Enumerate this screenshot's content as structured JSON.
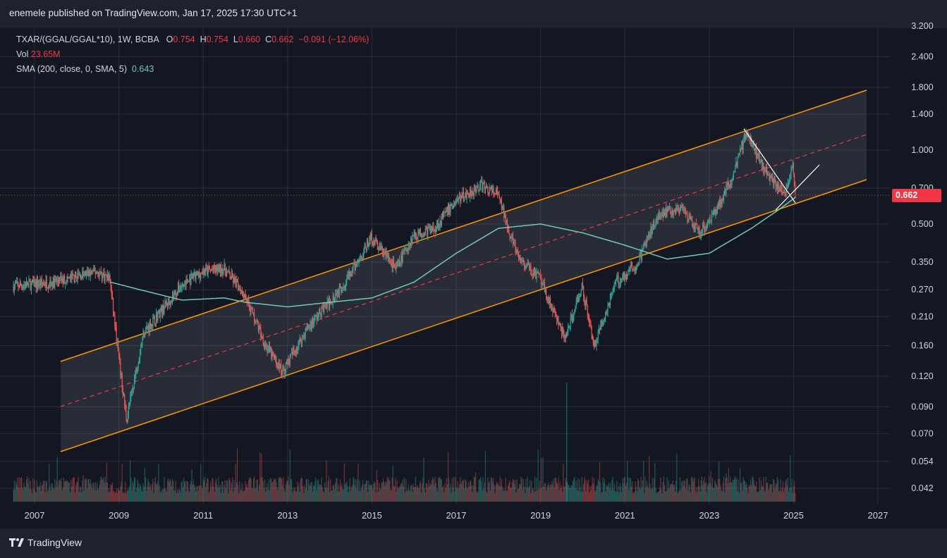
{
  "header": {
    "publish_text": "enemele published on TradingView.com, Jan 17, 2025 17:30 UTC+1"
  },
  "legend": {
    "symbol": "TXAR/(GGAL/GGAL*10), 1W, BCBA",
    "o_label": "O",
    "o_value": "0.754",
    "h_label": "H",
    "h_value": "0.754",
    "l_label": "L",
    "l_value": "0.660",
    "c_label": "C",
    "c_value": "0.662",
    "change": "−0.091 (−12.06%)",
    "vol_label": "Vol",
    "vol_value": "23.65M",
    "sma_label": "SMA (200, close, 0, SMA, 5)",
    "sma_value": "0.643"
  },
  "footer": {
    "brand": "TradingView"
  },
  "colors": {
    "background": "#131722",
    "up": "#26a69a",
    "down": "#ef5350",
    "sma": "#73c8b5",
    "channel": "#ff9800",
    "price_tag": "#f23645"
  },
  "chart_data": {
    "type": "candlestick",
    "x_tick_labels": [
      "2007",
      "2009",
      "2011",
      "2013",
      "2015",
      "2017",
      "2019",
      "2021",
      "2023",
      "2025",
      "2027"
    ],
    "y_tick_labels": [
      "3.200",
      "2.400",
      "1.800",
      "1.400",
      "1.000",
      "0.700",
      "0.500",
      "0.350",
      "0.270",
      "0.210",
      "0.160",
      "0.120",
      "0.090",
      "0.070",
      "0.054",
      "0.042"
    ],
    "y_scale": "log",
    "last_price_label": "0.662",
    "approx_close_path": [
      {
        "date": "2006.5",
        "value": 0.28
      },
      {
        "date": "2007.5",
        "value": 0.29
      },
      {
        "date": "2008.5",
        "value": 0.32
      },
      {
        "date": "2008.8",
        "value": 0.3
      },
      {
        "date": "2009.0",
        "value": 0.15
      },
      {
        "date": "2009.2",
        "value": 0.08
      },
      {
        "date": "2009.6",
        "value": 0.18
      },
      {
        "date": "2010.0",
        "value": 0.22
      },
      {
        "date": "2010.5",
        "value": 0.28
      },
      {
        "date": "2011.0",
        "value": 0.32
      },
      {
        "date": "2011.5",
        "value": 0.33
      },
      {
        "date": "2012.0",
        "value": 0.26
      },
      {
        "date": "2012.5",
        "value": 0.16
      },
      {
        "date": "2012.9",
        "value": 0.125
      },
      {
        "date": "2013.5",
        "value": 0.19
      },
      {
        "date": "2014.0",
        "value": 0.24
      },
      {
        "date": "2014.5",
        "value": 0.31
      },
      {
        "date": "2015.0",
        "value": 0.44
      },
      {
        "date": "2015.6",
        "value": 0.33
      },
      {
        "date": "2016.0",
        "value": 0.45
      },
      {
        "date": "2016.5",
        "value": 0.48
      },
      {
        "date": "2017.0",
        "value": 0.62
      },
      {
        "date": "2017.6",
        "value": 0.72
      },
      {
        "date": "2018.0",
        "value": 0.66
      },
      {
        "date": "2018.5",
        "value": 0.36
      },
      {
        "date": "2019.0",
        "value": 0.3
      },
      {
        "date": "2019.6",
        "value": 0.17
      },
      {
        "date": "2020.0",
        "value": 0.28
      },
      {
        "date": "2020.3",
        "value": 0.16
      },
      {
        "date": "2020.8",
        "value": 0.29
      },
      {
        "date": "2021.3",
        "value": 0.34
      },
      {
        "date": "2021.8",
        "value": 0.55
      },
      {
        "date": "2022.3",
        "value": 0.58
      },
      {
        "date": "2022.8",
        "value": 0.46
      },
      {
        "date": "2023.2",
        "value": 0.58
      },
      {
        "date": "2023.6",
        "value": 0.8
      },
      {
        "date": "2023.9",
        "value": 1.2
      },
      {
        "date": "2024.3",
        "value": 0.85
      },
      {
        "date": "2024.8",
        "value": 0.66
      },
      {
        "date": "2025.0",
        "value": 0.88
      },
      {
        "date": "2025.05",
        "value": 0.662
      }
    ],
    "approx_sma_path": [
      {
        "date": "2008.8",
        "value": 0.29
      },
      {
        "date": "2009.5",
        "value": 0.27
      },
      {
        "date": "2010.5",
        "value": 0.245
      },
      {
        "date": "2011.5",
        "value": 0.25
      },
      {
        "date": "2012.0",
        "value": 0.24
      },
      {
        "date": "2013.0",
        "value": 0.23
      },
      {
        "date": "2014.0",
        "value": 0.24
      },
      {
        "date": "2015.0",
        "value": 0.25
      },
      {
        "date": "2016.0",
        "value": 0.29
      },
      {
        "date": "2017.0",
        "value": 0.38
      },
      {
        "date": "2018.0",
        "value": 0.48
      },
      {
        "date": "2019.0",
        "value": 0.5
      },
      {
        "date": "2020.0",
        "value": 0.46
      },
      {
        "date": "2021.0",
        "value": 0.41
      },
      {
        "date": "2022.0",
        "value": 0.36
      },
      {
        "date": "2023.0",
        "value": 0.38
      },
      {
        "date": "2024.0",
        "value": 0.48
      },
      {
        "date": "2024.7",
        "value": 0.58
      },
      {
        "date": "2025.05",
        "value": 0.643
      }
    ]
  }
}
